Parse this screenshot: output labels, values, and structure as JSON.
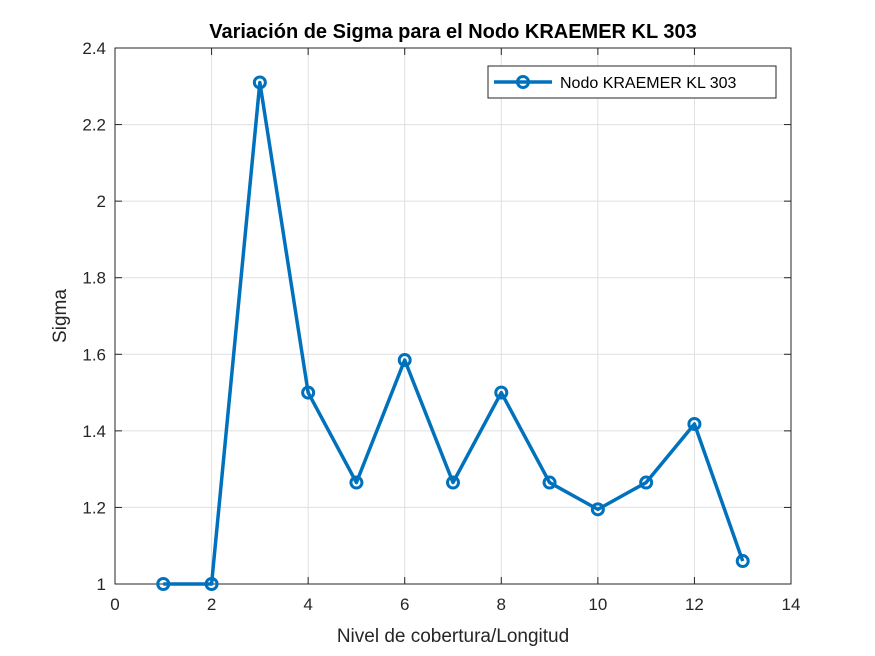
{
  "chart_data": {
    "type": "line",
    "title": "Variación de Sigma para el Nodo KRAEMER KL 303",
    "xlabel": "Nivel de cobertura/Longitud",
    "ylabel": "Sigma",
    "xlim": [
      0,
      14
    ],
    "ylim": [
      1,
      2.4
    ],
    "xticks": [
      0,
      2,
      4,
      6,
      8,
      10,
      12,
      14
    ],
    "yticks": [
      1,
      1.2,
      1.4,
      1.6,
      1.8,
      2,
      2.2,
      2.4
    ],
    "xtick_labels": [
      "0",
      "2",
      "4",
      "6",
      "8",
      "10",
      "12",
      "14"
    ],
    "ytick_labels": [
      "1",
      "1.2",
      "1.4",
      "1.6",
      "1.8",
      "2",
      "2.2",
      "2.4"
    ],
    "grid": true,
    "legend_position": "top-right",
    "series": [
      {
        "name": "Nodo KRAEMER KL 303",
        "color": "#0072BD",
        "marker": "circle",
        "x": [
          1,
          2,
          3,
          4,
          5,
          6,
          7,
          8,
          9,
          10,
          11,
          12,
          13
        ],
        "y": [
          1.0,
          1.0,
          2.31,
          1.5,
          1.265,
          1.585,
          1.265,
          1.5,
          1.265,
          1.195,
          1.265,
          1.418,
          1.06
        ]
      }
    ]
  }
}
